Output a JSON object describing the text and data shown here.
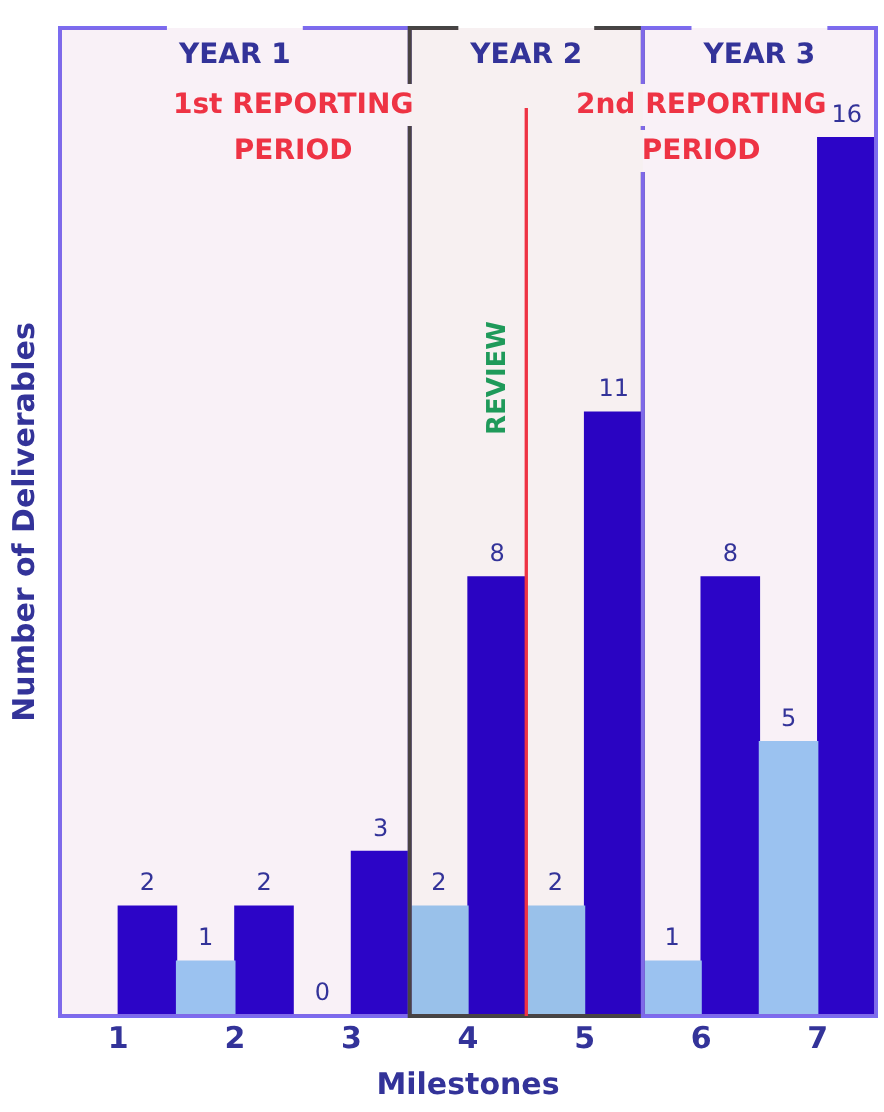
{
  "chart_data": {
    "type": "bar",
    "xlabel": "Milestones",
    "ylabel": "Number of Deliverables",
    "categories": [
      "1",
      "2",
      "3",
      "4",
      "5",
      "6",
      "7"
    ],
    "series": [
      {
        "color": "#99ccf8",
        "values": [
          null,
          1,
          0,
          2,
          2,
          1,
          5
        ]
      },
      {
        "color": "#2200cc",
        "values": [
          2,
          2,
          3,
          8,
          11,
          8,
          16
        ]
      }
    ],
    "tick_labels": "x",
    "data_labels": true,
    "legend": false,
    "bands": [
      {
        "axis": "x",
        "from": "1",
        "to": "3",
        "label": "YEAR 1",
        "color": "#7b6cf0"
      },
      {
        "axis": "x",
        "from": "4",
        "to": "5",
        "label": "YEAR 2",
        "color": "#444444"
      },
      {
        "axis": "x",
        "from": "6",
        "to": "7",
        "label": "YEAR 3",
        "color": "#7b6cf0"
      },
      {
        "axis": "x",
        "from": "1",
        "to": "4",
        "label": "1st REPORTING PERIOD",
        "color": "#ee3344"
      },
      {
        "axis": "x",
        "from": "5",
        "to": "7",
        "label": "2nd REPORTING PERIOD",
        "color": "#ee3344"
      }
    ],
    "annotations": [
      "REVIEW"
    ]
  }
}
